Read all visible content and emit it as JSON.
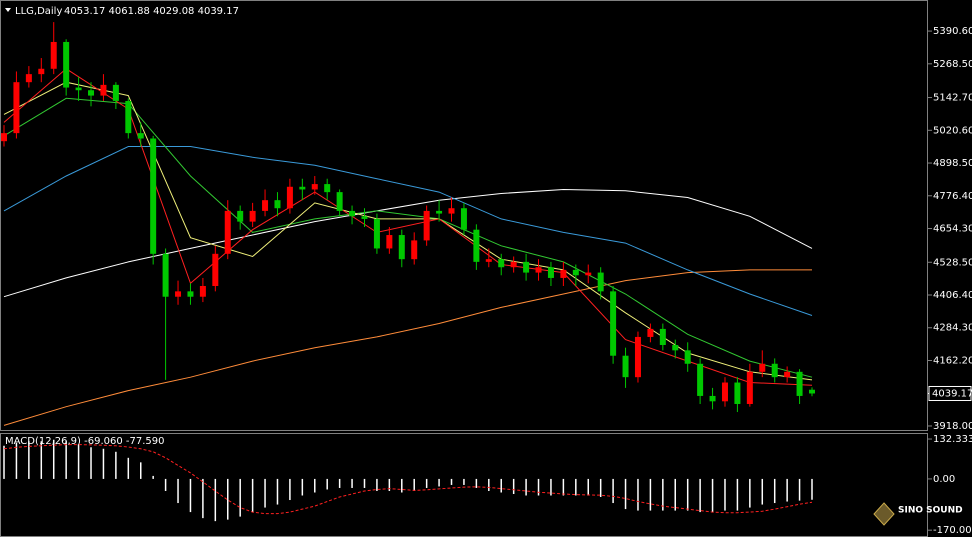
{
  "chart_data": {
    "type": "candlestick",
    "symbol": "LLG,Daily",
    "quote": "4053.17 4061.88 4029.08 4039.17",
    "bull_color": "#ff0000",
    "bear_color": "#00c800",
    "ylim": [
      3903,
      5499
    ],
    "yticks": [
      {
        "value": 5390.6,
        "label": "5390.60"
      },
      {
        "value": 5268.5,
        "label": "5268.50"
      },
      {
        "value": 5142.7,
        "label": "5142.70"
      },
      {
        "value": 5020.6,
        "label": "5020.60"
      },
      {
        "value": 4898.5,
        "label": "4898.50"
      },
      {
        "value": 4776.4,
        "label": "4776.40"
      },
      {
        "value": 4654.3,
        "label": "4654.30"
      },
      {
        "value": 4528.5,
        "label": "4528.50"
      },
      {
        "value": 4406.4,
        "label": "4406.40"
      },
      {
        "value": 4284.3,
        "label": "4284.30"
      },
      {
        "value": 4162.2,
        "label": "4162.20"
      },
      {
        "value": 3918,
        "label": "3918.00"
      }
    ],
    "last_price": {
      "value": 4039.17,
      "label": "4039.17"
    },
    "open": [
      4980,
      5010,
      5200,
      5230,
      5250,
      5350,
      5180,
      5170,
      5150,
      5190,
      5130,
      5010,
      4990,
      4560,
      4400,
      4420,
      4400,
      4440,
      4560,
      4720,
      4680,
      4720,
      4760,
      4730,
      4810,
      4800,
      4820,
      4790,
      4720,
      4700,
      4690,
      4580,
      4630,
      4540,
      4610,
      4720,
      4710,
      4730,
      4650,
      4530,
      4540,
      4510,
      4530,
      4490,
      4510,
      4470,
      4500,
      4480,
      4490,
      4420,
      4180,
      4100,
      4250,
      4280,
      4220,
      4200,
      4150,
      4030,
      4010,
      4080,
      4000,
      4120,
      4150,
      4100,
      4120,
      4053.17
    ],
    "high": [
      5040,
      5240,
      5260,
      5290,
      5424,
      5360,
      5220,
      5200,
      5230,
      5200,
      5140,
      5050,
      5000,
      4580,
      4460,
      4450,
      4470,
      4590,
      4760,
      4740,
      4750,
      4800,
      4790,
      4840,
      4840,
      4850,
      4840,
      4800,
      4740,
      4730,
      4710,
      4660,
      4650,
      4640,
      4740,
      4760,
      4770,
      4750,
      4670,
      4580,
      4560,
      4550,
      4560,
      4540,
      4530,
      4530,
      4520,
      4520,
      4510,
      4440,
      4210,
      4270,
      4300,
      4300,
      4240,
      4230,
      4170,
      4060,
      4100,
      4100,
      4150,
      4200,
      4170,
      4140,
      4130,
      4061.88
    ],
    "low": [
      4960,
      4990,
      5180,
      5200,
      5230,
      5150,
      5130,
      5110,
      5130,
      5100,
      4990,
      4960,
      4520,
      4090,
      4370,
      4370,
      4380,
      4420,
      4540,
      4650,
      4660,
      4700,
      4700,
      4710,
      4760,
      4780,
      4760,
      4700,
      4670,
      4660,
      4560,
      4560,
      4510,
      4520,
      4590,
      4680,
      4680,
      4630,
      4500,
      4510,
      4480,
      4490,
      4460,
      4460,
      4440,
      4440,
      4440,
      4450,
      4390,
      4150,
      4060,
      4080,
      4230,
      4200,
      4170,
      4120,
      4000,
      3980,
      3990,
      3970,
      3990,
      4100,
      4080,
      4080,
      4000,
      4029.08
    ],
    "close": [
      5010,
      5200,
      5230,
      5250,
      5350,
      5180,
      5170,
      5150,
      5190,
      5130,
      5010,
      4990,
      4560,
      4400,
      4420,
      4400,
      4440,
      4560,
      4720,
      4680,
      4720,
      4760,
      4730,
      4810,
      4800,
      4820,
      4790,
      4720,
      4700,
      4690,
      4580,
      4630,
      4540,
      4610,
      4720,
      4710,
      4730,
      4650,
      4530,
      4540,
      4510,
      4530,
      4490,
      4510,
      4470,
      4500,
      4480,
      4490,
      4420,
      4180,
      4100,
      4250,
      4280,
      4220,
      4200,
      4150,
      4030,
      4010,
      4080,
      4000,
      4120,
      4150,
      4100,
      4120,
      4030,
      4039.17
    ],
    "series": [
      {
        "color": "#ffffff",
        "values": [
          4400,
          4470,
          4530,
          4580,
          4630,
          4680,
          4720,
          4760,
          4785,
          4800,
          4795,
          4770,
          4700,
          4580
        ]
      },
      {
        "color": "#ff8c3a",
        "values": [
          3920,
          3990,
          4050,
          4100,
          4160,
          4210,
          4250,
          4300,
          4360,
          4410,
          4460,
          4490,
          4500,
          4500
        ]
      },
      {
        "color": "#3a9ad9",
        "values": [
          4720,
          4850,
          4960,
          4960,
          4920,
          4890,
          4840,
          4790,
          4690,
          4640,
          4600,
          4500,
          4410,
          4330
        ]
      },
      {
        "color": "#32c832",
        "values": [
          5000,
          5140,
          5120,
          4850,
          4640,
          4690,
          4720,
          4690,
          4590,
          4530,
          4410,
          4260,
          4160,
          4100
        ]
      },
      {
        "color": "#f0f07a",
        "values": [
          5080,
          5200,
          5150,
          4620,
          4550,
          4750,
          4690,
          4690,
          4540,
          4500,
          4340,
          4190,
          4120,
          4090
        ]
      },
      {
        "color": "#ff2020",
        "values": [
          5050,
          5250,
          5100,
          4450,
          4650,
          4790,
          4640,
          4690,
          4520,
          4490,
          4240,
          4160,
          4080,
          4070
        ]
      }
    ],
    "macd": {
      "title": "MACD(12,26,9) -69.060 -77.590",
      "ylim": [
        -186,
        149
      ],
      "yticks": [
        132.333,
        {
          "value": 0,
          "label": "0.00"
        },
        -170.008
      ],
      "hist_color": "#ffffff",
      "signal_color": "#ff2020",
      "values": [
        110,
        120,
        125,
        125,
        130,
        125,
        115,
        105,
        100,
        90,
        70,
        55,
        10,
        -40,
        -80,
        -110,
        -130,
        -140,
        -135,
        -125,
        -110,
        -95,
        -85,
        -70,
        -55,
        -45,
        -35,
        -30,
        -30,
        -30,
        -40,
        -40,
        -45,
        -40,
        -30,
        -25,
        -20,
        -20,
        -30,
        -40,
        -45,
        -50,
        -55,
        -55,
        -55,
        -55,
        -55,
        -55,
        -60,
        -80,
        -100,
        -105,
        -105,
        -105,
        -105,
        -105,
        -110,
        -110,
        -105,
        -105,
        -95,
        -85,
        -80,
        -75,
        -72,
        -69.06
      ],
      "signal": [
        100,
        105,
        108,
        110,
        112,
        114,
        114,
        113,
        112,
        110,
        106,
        100,
        90,
        70,
        45,
        20,
        -10,
        -40,
        -70,
        -95,
        -110,
        -115,
        -115,
        -110,
        -100,
        -90,
        -75,
        -60,
        -50,
        -40,
        -35,
        -32,
        -35,
        -38,
        -36,
        -33,
        -30,
        -27,
        -26,
        -28,
        -32,
        -36,
        -40,
        -44,
        -47,
        -50,
        -52,
        -53,
        -54,
        -58,
        -65,
        -75,
        -83,
        -90,
        -95,
        -100,
        -105,
        -110,
        -112,
        -112,
        -110,
        -107,
        -100,
        -92,
        -84,
        -77.59
      ]
    },
    "logo": "SINO SOUND"
  }
}
